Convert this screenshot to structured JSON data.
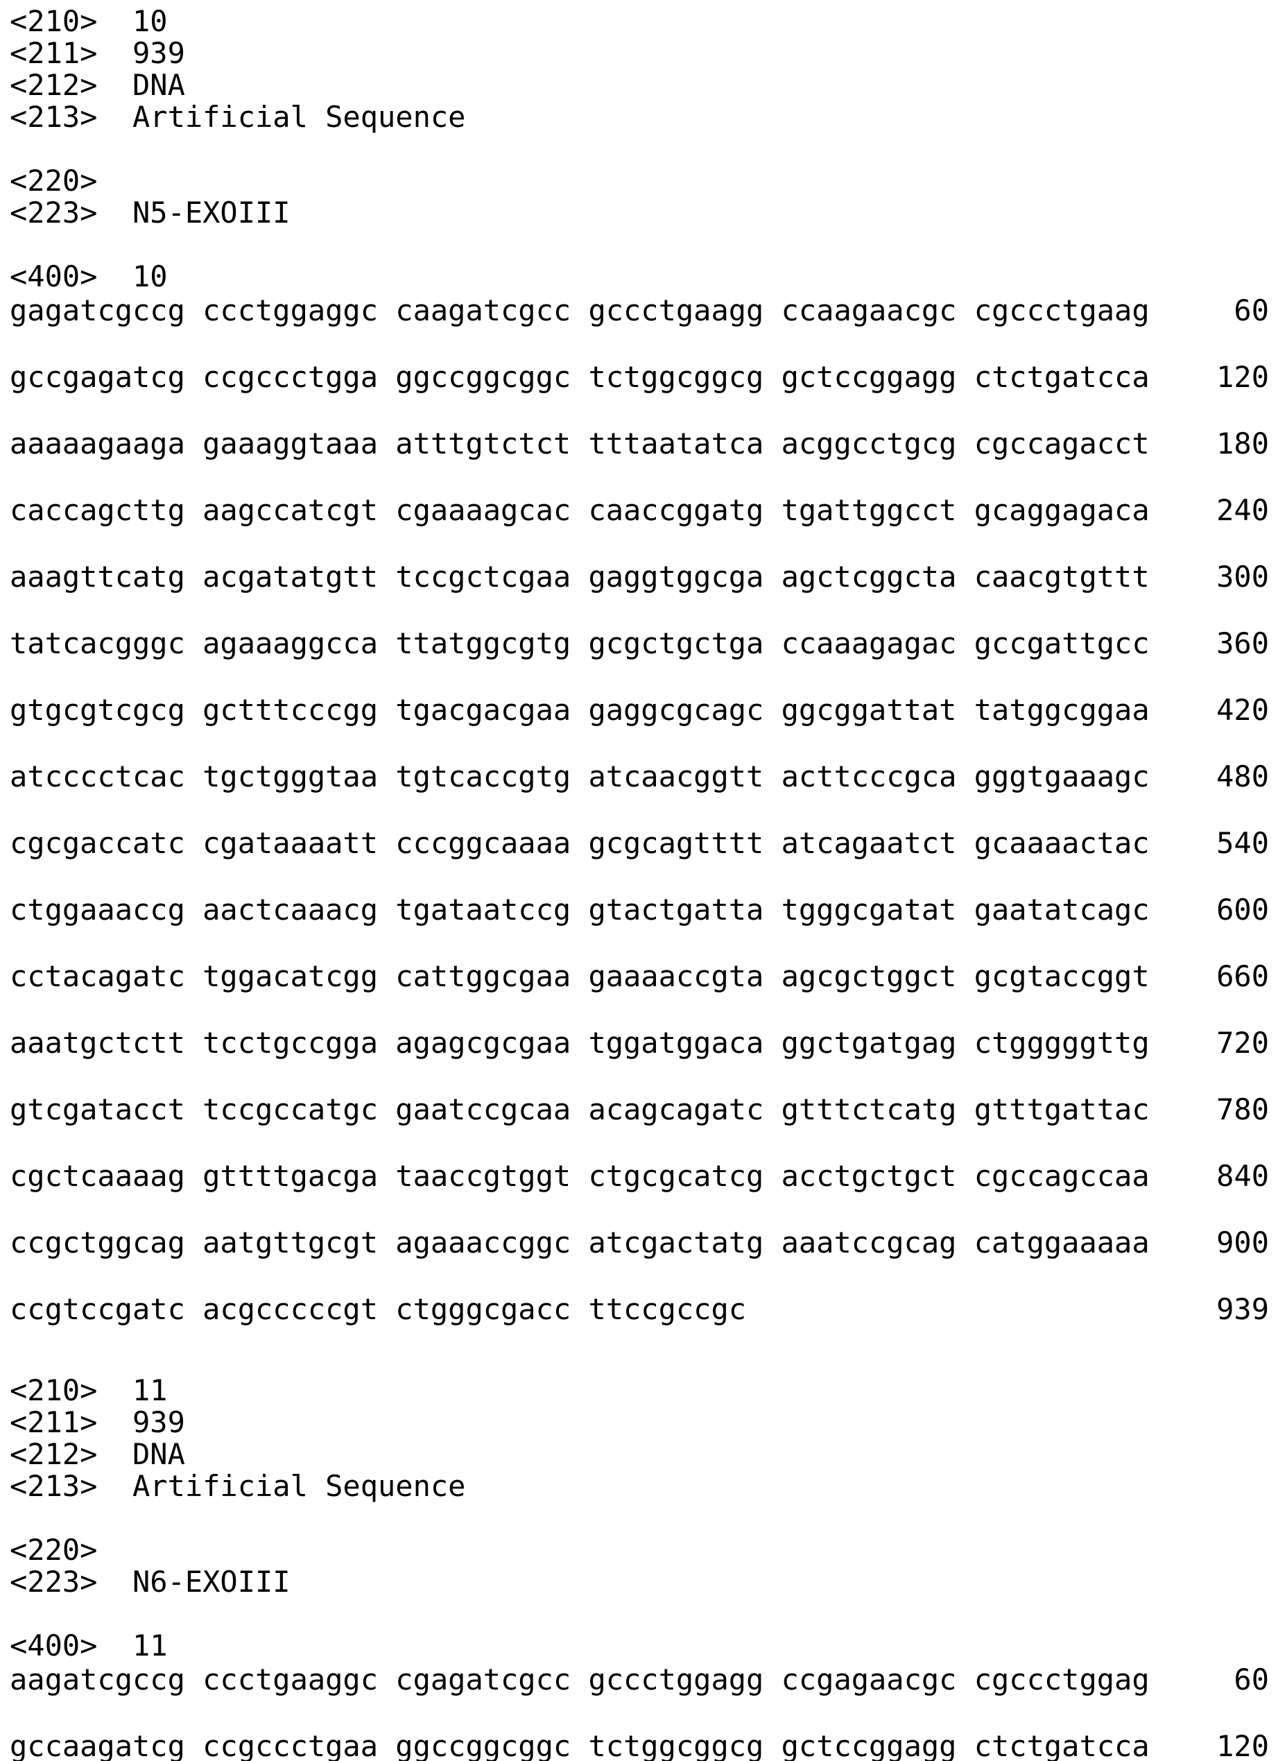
{
  "page": {
    "background_color": "#ffffff",
    "text_color": "#000000",
    "document_type": "patent sequence listing"
  },
  "entries": [
    {
      "numeric_tags": [
        "<210>  10",
        "<211>  939",
        "<212>  DNA",
        "<213>  Artificial Sequence"
      ],
      "feature_tags": [
        "<220>",
        "<223>  N5-EXOIII"
      ],
      "sequence_tag": "<400>  10",
      "sequence_lines": [
        {
          "bases": "gagatcgccg ccctggaggc caagatcgcc gccctgaagg ccaagaacgc cgccctgaag",
          "pos": "60"
        },
        {
          "bases": "gccgagatcg ccgccctgga ggccggcggc tctggcggcg gctccggagg ctctgatcca",
          "pos": "120"
        },
        {
          "bases": "aaaaagaaga gaaaggtaaa atttgtctct tttaatatca acggcctgcg cgccagacct",
          "pos": "180"
        },
        {
          "bases": "caccagcttg aagccatcgt cgaaaagcac caaccggatg tgattggcct gcaggagaca",
          "pos": "240"
        },
        {
          "bases": "aaagttcatg acgatatgtt tccgctcgaa gaggtggcga agctcggcta caacgtgttt",
          "pos": "300"
        },
        {
          "bases": "tatcacgggc agaaaggcca ttatggcgtg gcgctgctga ccaaagagac gccgattgcc",
          "pos": "360"
        },
        {
          "bases": "gtgcgtcgcg gctttcccgg tgacgacgaa gaggcgcagc ggcggattat tatggcggaa",
          "pos": "420"
        },
        {
          "bases": "atcccctcac tgctgggtaa tgtcaccgtg atcaacggtt acttcccgca gggtgaaagc",
          "pos": "480"
        },
        {
          "bases": "cgcgaccatc cgataaaatt cccggcaaaa gcgcagtttt atcagaatct gcaaaactac",
          "pos": "540"
        },
        {
          "bases": "ctggaaaccg aactcaaacg tgataatccg gtactgatta tgggcgatat gaatatcagc",
          "pos": "600"
        },
        {
          "bases": "cctacagatc tggacatcgg cattggcgaa gaaaaccgta agcgctggct gcgtaccggt",
          "pos": "660"
        },
        {
          "bases": "aaatgctctt tcctgccgga agagcgcgaa tggatggaca ggctgatgag ctgggggttg",
          "pos": "720"
        },
        {
          "bases": "gtcgatacct tccgccatgc gaatccgcaa acagcagatc gtttctcatg gtttgattac",
          "pos": "780"
        },
        {
          "bases": "cgctcaaaag gttttgacga taaccgtggt ctgcgcatcg acctgctgct cgccagccaa",
          "pos": "840"
        },
        {
          "bases": "ccgctggcag aatgttgcgt agaaaccggc atcgactatg aaatccgcag catggaaaaa",
          "pos": "900"
        },
        {
          "bases": "ccgtccgatc acgcccccgt ctgggcgacc ttccgccgc",
          "pos": "939"
        }
      ]
    },
    {
      "numeric_tags": [
        "<210>  11",
        "<211>  939",
        "<212>  DNA",
        "<213>  Artificial Sequence"
      ],
      "feature_tags": [
        "<220>",
        "<223>  N6-EXOIII"
      ],
      "sequence_tag": "<400>  11",
      "sequence_lines": [
        {
          "bases": "aagatcgccg ccctgaaggc cgagatcgcc gccctggagg ccgagaacgc cgccctggag",
          "pos": "60"
        },
        {
          "bases": "gccaagatcg ccgccctgaa ggccggcggc tctggcggcg gctccggagg ctctgatcca",
          "pos": "120"
        }
      ]
    }
  ]
}
